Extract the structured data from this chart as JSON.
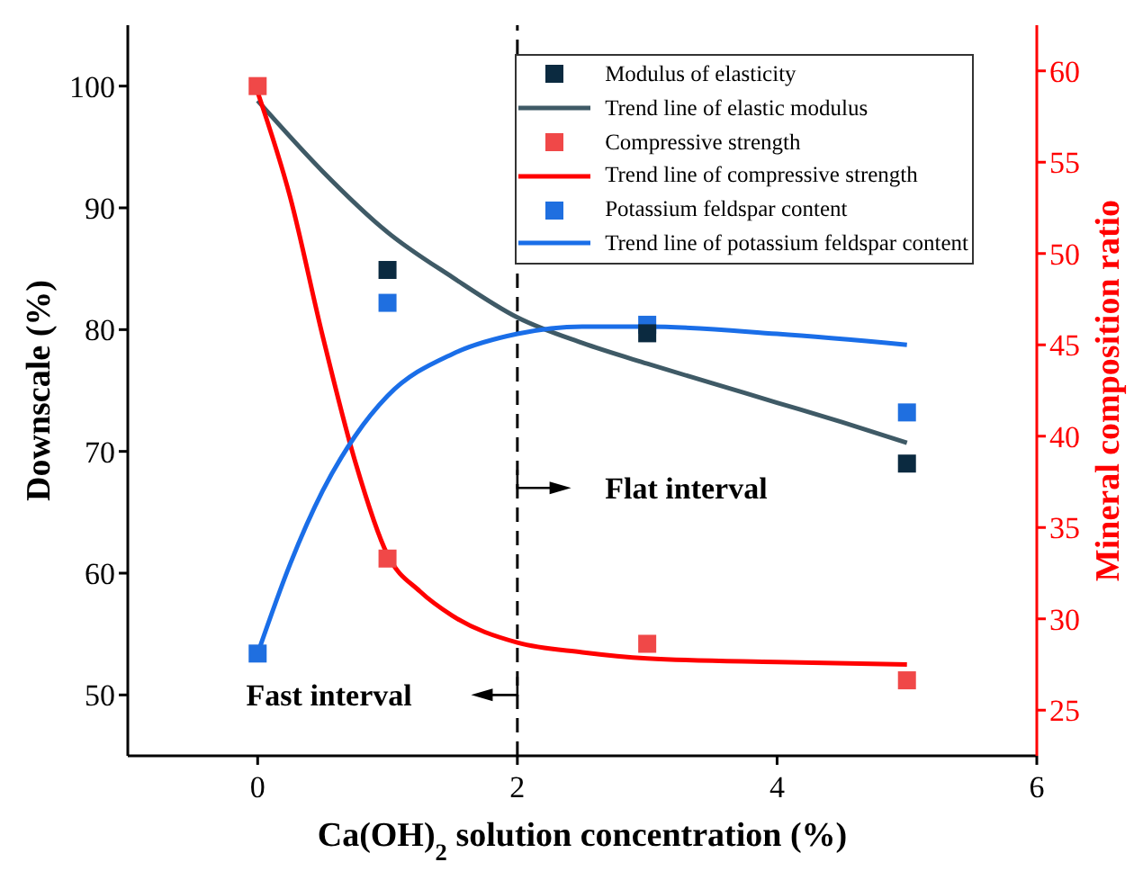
{
  "chart_data": {
    "type": "scatter",
    "xlabel": "Ca(OH)$_{2}$ solution concentration (%)",
    "ylabel": "Downscale (%)",
    "y2label": "Mineral composition ratio",
    "xlim": [
      -1,
      6
    ],
    "xticks": [
      0,
      2,
      4,
      6
    ],
    "ylim": [
      45,
      105
    ],
    "yticks": [
      50,
      60,
      70,
      80,
      90,
      100
    ],
    "y2lim": [
      22.5,
      62.5
    ],
    "y2ticks": [
      25,
      30,
      35,
      40,
      45,
      50,
      55,
      60
    ],
    "legend": "top right",
    "ref_lines": [
      {
        "axis": "x",
        "value": 2,
        "color": "#000000",
        "line_style": "dashed"
      }
    ],
    "annotations": [
      "Flat interval",
      "Fast interval"
    ],
    "series": [
      {
        "name": "Modulus of elasticity",
        "marker": "square",
        "color": "#0b2a40",
        "x": [
          1,
          3,
          5
        ],
        "values": [
          84.9,
          79.7,
          69.0
        ]
      },
      {
        "name": "Trend line of elastic modulus",
        "type": "line",
        "marker": "none",
        "color": "#3f5a66",
        "x": [
          0,
          0.5,
          1,
          1.5,
          2,
          2.5,
          3,
          3.5,
          4,
          4.5,
          5
        ],
        "values": [
          98.8,
          93,
          88,
          84.3,
          81,
          78.9,
          77.2,
          75.6,
          74,
          72.4,
          70.7
        ]
      },
      {
        "name": "Compressive strength",
        "marker": "square",
        "color": "#f04848",
        "x": [
          0,
          1,
          3,
          5
        ],
        "values": [
          100,
          61.2,
          54.2,
          51.2
        ]
      },
      {
        "name": "Trend line of compressive strength",
        "type": "line",
        "marker": "none",
        "color": "#ff0000",
        "x": [
          0,
          0.25,
          0.5,
          0.75,
          1,
          1.25,
          1.5,
          2,
          2.5,
          3,
          4,
          5
        ],
        "values": [
          99.5,
          90.9,
          79.5,
          69.2,
          61.5,
          58.5,
          56.5,
          54.3,
          53.5,
          53,
          52.7,
          52.5
        ]
      },
      {
        "name": "Potassium feldspar content",
        "marker": "square",
        "axis": "y2",
        "color": "#1f6fe0",
        "x": [
          0,
          1,
          3,
          5
        ],
        "values": [
          28.1,
          47.3,
          46.1,
          41.3
        ]
      },
      {
        "name": "Trend line of potassium feldspar content",
        "type": "line",
        "marker": "none",
        "axis": "y2",
        "color": "#1a6ee8",
        "x": [
          0,
          0.25,
          0.5,
          0.75,
          1,
          1.5,
          2,
          2.5,
          3,
          4,
          5
        ],
        "values": [
          28.1,
          33,
          37,
          40,
          42.2,
          44.5,
          45.6,
          46,
          46,
          45.6,
          45.0
        ]
      }
    ]
  }
}
